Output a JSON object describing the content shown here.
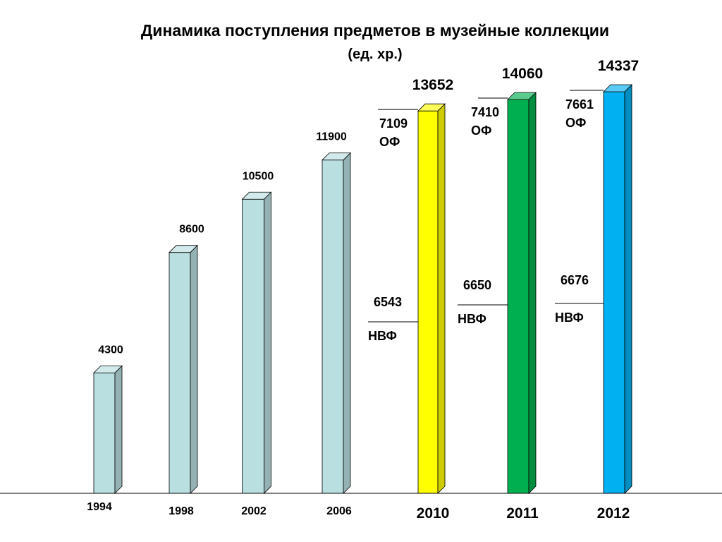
{
  "chart_data": {
    "type": "bar",
    "title": "Динамика поступления предметов в музейные коллекции",
    "subtitle": "(ед. хр.)",
    "categories": [
      "1994",
      "1998",
      "2002",
      "2006",
      "2010",
      "2011",
      "2012"
    ],
    "values": [
      4300,
      8600,
      10500,
      11900,
      13652,
      14060,
      14337
    ],
    "value_labels": [
      "4300",
      "8600",
      "10500",
      "11900",
      "13652",
      "14060",
      "14337"
    ],
    "ylim": [
      0,
      14337
    ],
    "grid": false,
    "colors": {
      "early": "#b9dfe0",
      "2010": "#ffff00",
      "2011": "#00b050",
      "2012": "#00b0f0"
    },
    "breakdown": [
      {
        "year": "2010",
        "of_value": "7109",
        "of_label": "ОФ",
        "nvf_value": "6543",
        "nvf_label": "НВФ"
      },
      {
        "year": "2011",
        "of_value": "7410",
        "of_label": "ОФ",
        "nvf_value": "6650",
        "nvf_label": "НВФ"
      },
      {
        "year": "2012",
        "of_value": "7661",
        "of_label": "ОФ",
        "nvf_value": "6676",
        "nvf_label": "НВФ"
      }
    ]
  }
}
